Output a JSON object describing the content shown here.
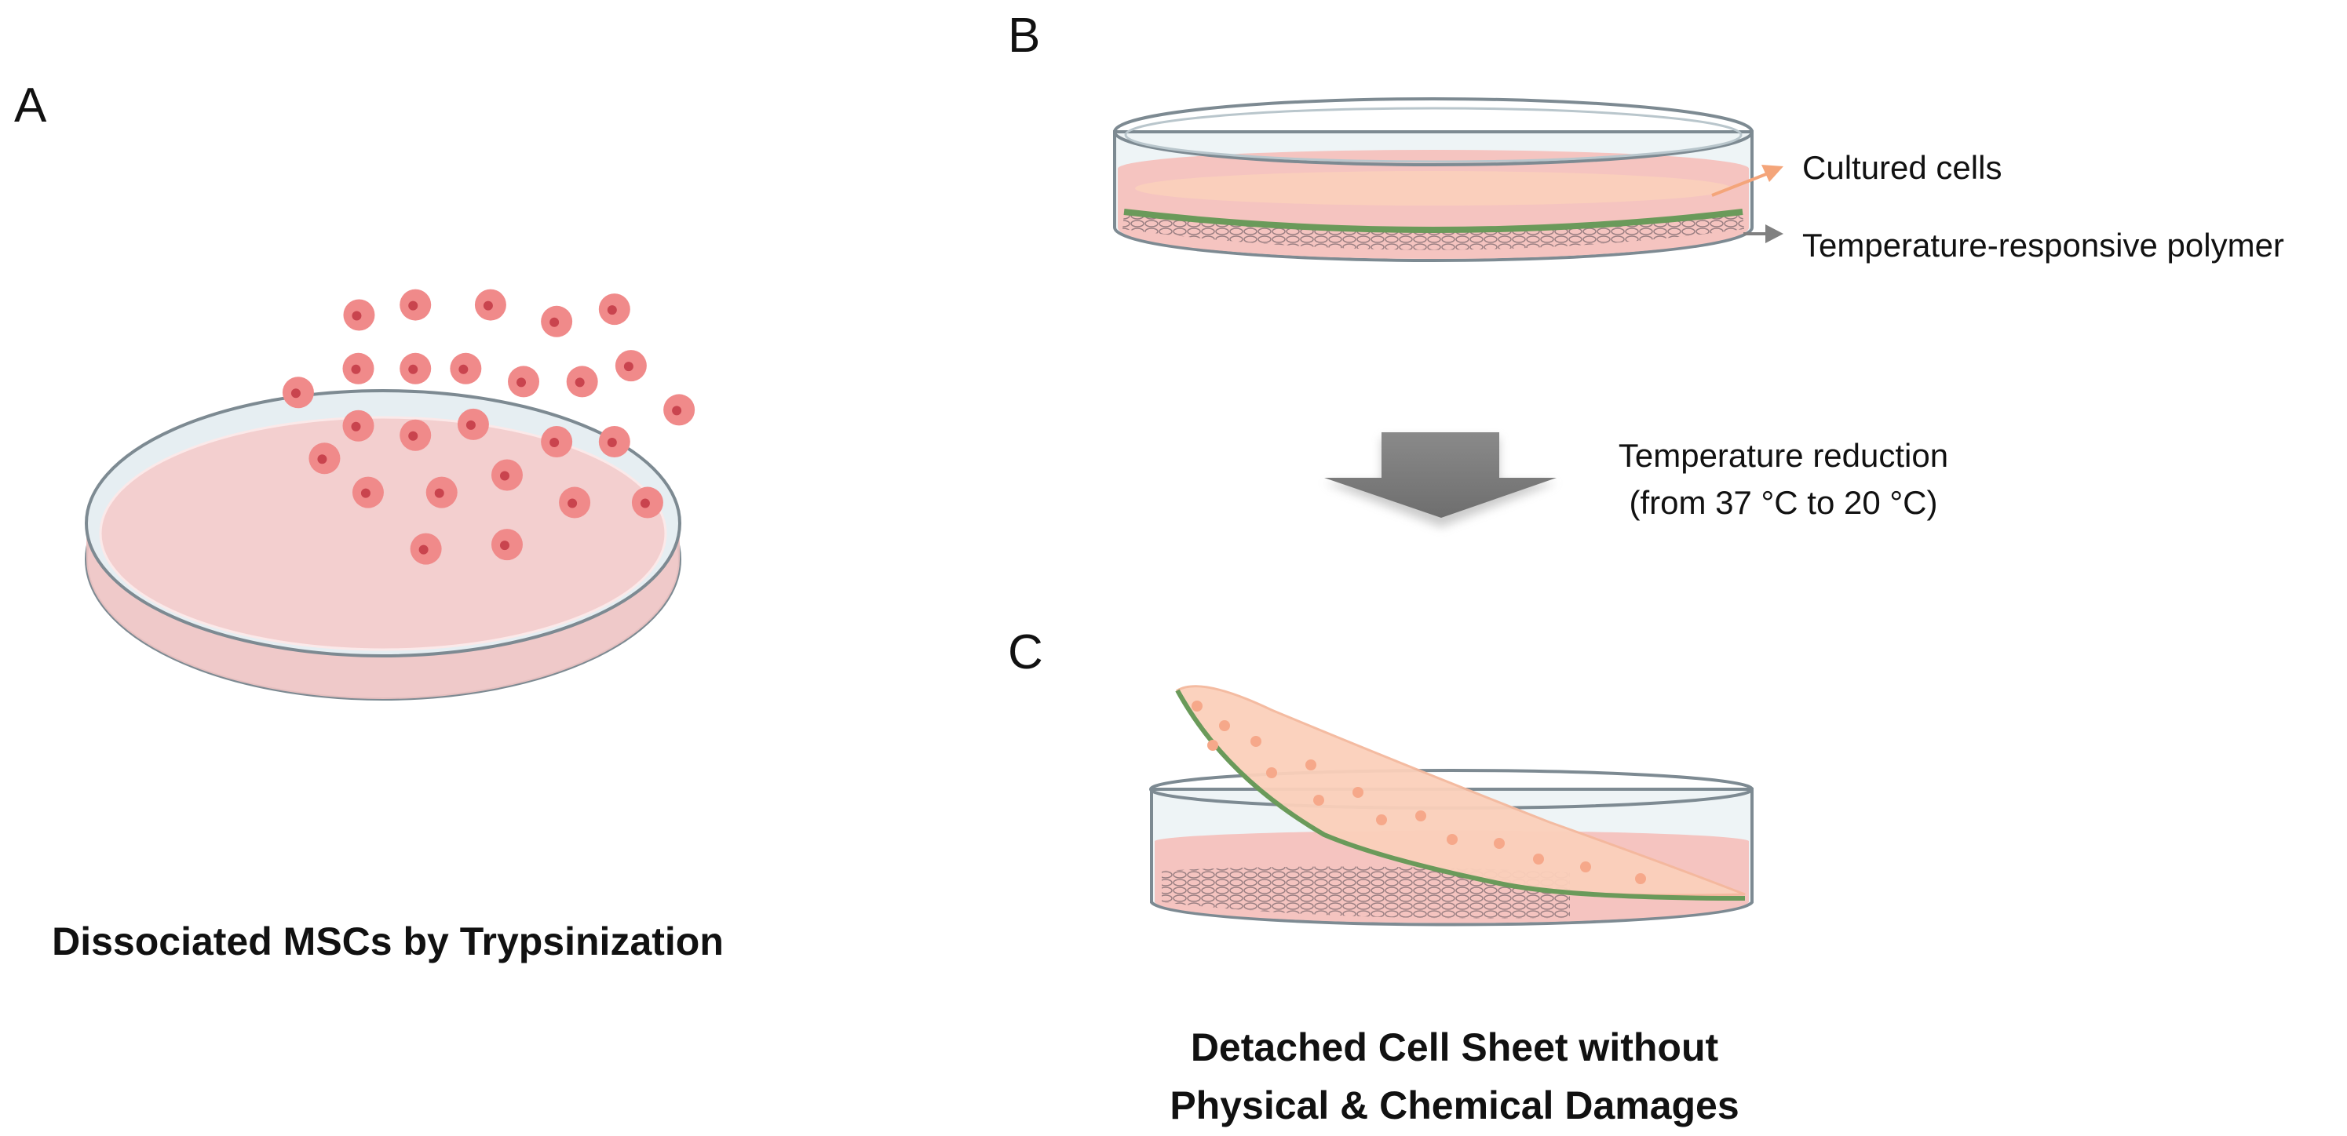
{
  "panels": {
    "a": {
      "label": "A",
      "caption": "Dissociated MSCs by Trypsinization"
    },
    "b": {
      "label": "B",
      "callouts": {
        "cells": "Cultured cells",
        "polymer": "Temperature-responsive polymer"
      }
    },
    "step": {
      "line1": "Temperature reduction",
      "line2": "(from 37 °C to 20 °C)"
    },
    "c": {
      "label": "C",
      "caption_line1": "Detached Cell Sheet without",
      "caption_line2": "Physical & Chemical Damages"
    }
  },
  "colors": {
    "cell": "#f08a8a",
    "nucleus": "#c9444e",
    "medium": "#f5c9c9",
    "cell_sheet": "#fbd0bb",
    "polymer": "#6a9a5a",
    "dish_edge": "#7d8a92",
    "arrow": "#808080",
    "cells_arrow": "#f4a57a"
  }
}
